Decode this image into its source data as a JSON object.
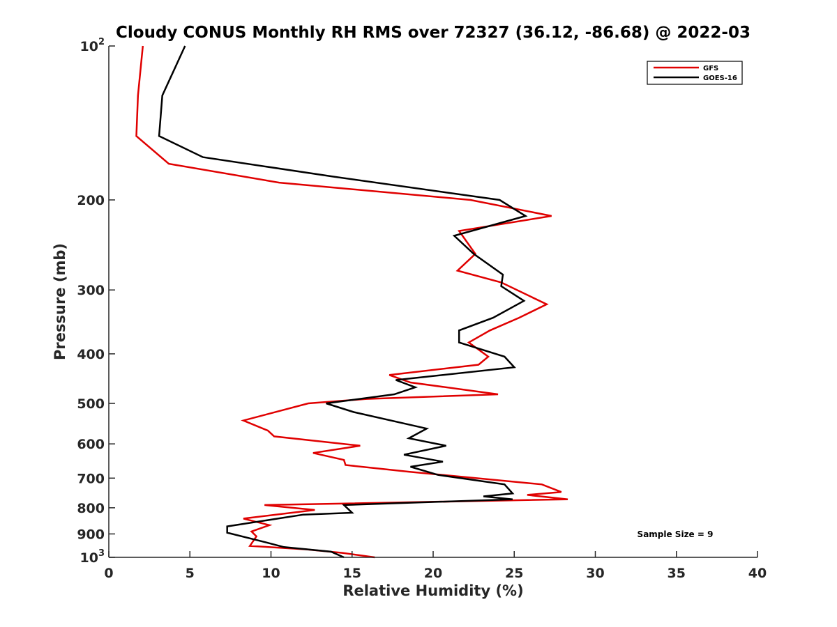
{
  "chart_data": {
    "type": "line",
    "title": "Cloudy CONUS Monthly RH RMS over 72327 (36.12, -86.68) @ 2022-03",
    "xlabel": "Relative Humidity (%)",
    "ylabel": "Pressure (mb)",
    "xlim": [
      0,
      40
    ],
    "ylim": [
      100,
      1000
    ],
    "yscale": "log",
    "y_reversed": true,
    "x_ticks": [
      0,
      5,
      10,
      15,
      20,
      25,
      30,
      35,
      40
    ],
    "x_tick_labels": [
      "0",
      "5",
      "10",
      "15",
      "20",
      "25",
      "30",
      "35",
      "40"
    ],
    "y_ticks": [
      {
        "value": 100,
        "base": "10",
        "exp": "2",
        "label": ""
      },
      {
        "value": 200,
        "base": "",
        "exp": "",
        "label": "200"
      },
      {
        "value": 300,
        "base": "",
        "exp": "",
        "label": "300"
      },
      {
        "value": 400,
        "base": "",
        "exp": "",
        "label": "400"
      },
      {
        "value": 500,
        "base": "",
        "exp": "",
        "label": "500"
      },
      {
        "value": 600,
        "base": "",
        "exp": "",
        "label": "600"
      },
      {
        "value": 700,
        "base": "",
        "exp": "",
        "label": "700"
      },
      {
        "value": 800,
        "base": "",
        "exp": "",
        "label": "800"
      },
      {
        "value": 900,
        "base": "",
        "exp": "",
        "label": "900"
      },
      {
        "value": 1000,
        "base": "10",
        "exp": "3",
        "label": ""
      }
    ],
    "legend_position": "top-right",
    "annotation": "Sample Size = 9",
    "series": [
      {
        "name": "GFS",
        "color": "#e00000",
        "points": [
          [
            2.1,
            100
          ],
          [
            1.8,
            125
          ],
          [
            1.7,
            150
          ],
          [
            3.7,
            170
          ],
          [
            10.5,
            185
          ],
          [
            22.3,
            200
          ],
          [
            27.3,
            215
          ],
          [
            21.6,
            230
          ],
          [
            22.6,
            255
          ],
          [
            21.5,
            275
          ],
          [
            24.2,
            290
          ],
          [
            27.0,
            320
          ],
          [
            25.3,
            340
          ],
          [
            23.5,
            360
          ],
          [
            22.2,
            380
          ],
          [
            23.4,
            405
          ],
          [
            22.8,
            420
          ],
          [
            17.3,
            440
          ],
          [
            18.6,
            455
          ],
          [
            24.0,
            480
          ],
          [
            15.9,
            490
          ],
          [
            12.3,
            500
          ],
          [
            8.3,
            540
          ],
          [
            9.8,
            565
          ],
          [
            10.2,
            580
          ],
          [
            15.5,
            605
          ],
          [
            12.6,
            625
          ],
          [
            14.5,
            645
          ],
          [
            14.6,
            660
          ],
          [
            18.5,
            680
          ],
          [
            26.7,
            720
          ],
          [
            27.9,
            745
          ],
          [
            25.8,
            755
          ],
          [
            28.3,
            770
          ],
          [
            9.6,
            790
          ],
          [
            12.7,
            808
          ],
          [
            8.3,
            840
          ],
          [
            9.9,
            865
          ],
          [
            8.8,
            890
          ],
          [
            9.1,
            910
          ],
          [
            8.7,
            950
          ],
          [
            12.2,
            965
          ],
          [
            14.4,
            980
          ],
          [
            16.4,
            1000
          ]
        ]
      },
      {
        "name": "GOES-16",
        "color": "#000000",
        "points": [
          [
            4.7,
            100
          ],
          [
            3.3,
            125
          ],
          [
            3.1,
            150
          ],
          [
            5.8,
            165
          ],
          [
            13.8,
            180
          ],
          [
            24.1,
            200
          ],
          [
            25.7,
            215
          ],
          [
            21.3,
            235
          ],
          [
            22.5,
            255
          ],
          [
            24.3,
            280
          ],
          [
            24.2,
            295
          ],
          [
            25.6,
            315
          ],
          [
            23.7,
            340
          ],
          [
            21.6,
            360
          ],
          [
            21.6,
            380
          ],
          [
            24.4,
            405
          ],
          [
            25.0,
            425
          ],
          [
            17.7,
            450
          ],
          [
            18.9,
            465
          ],
          [
            17.6,
            480
          ],
          [
            13.4,
            500
          ],
          [
            15.1,
            520
          ],
          [
            19.6,
            560
          ],
          [
            18.5,
            585
          ],
          [
            20.8,
            605
          ],
          [
            18.2,
            630
          ],
          [
            20.6,
            650
          ],
          [
            18.6,
            665
          ],
          [
            20.3,
            690
          ],
          [
            24.4,
            720
          ],
          [
            24.9,
            750
          ],
          [
            23.1,
            760
          ],
          [
            24.9,
            770
          ],
          [
            14.5,
            790
          ],
          [
            15.0,
            818
          ],
          [
            12.0,
            825
          ],
          [
            7.3,
            870
          ],
          [
            7.3,
            895
          ],
          [
            9.7,
            935
          ],
          [
            10.8,
            955
          ],
          [
            13.7,
            975
          ],
          [
            14.5,
            1000
          ]
        ]
      }
    ]
  }
}
